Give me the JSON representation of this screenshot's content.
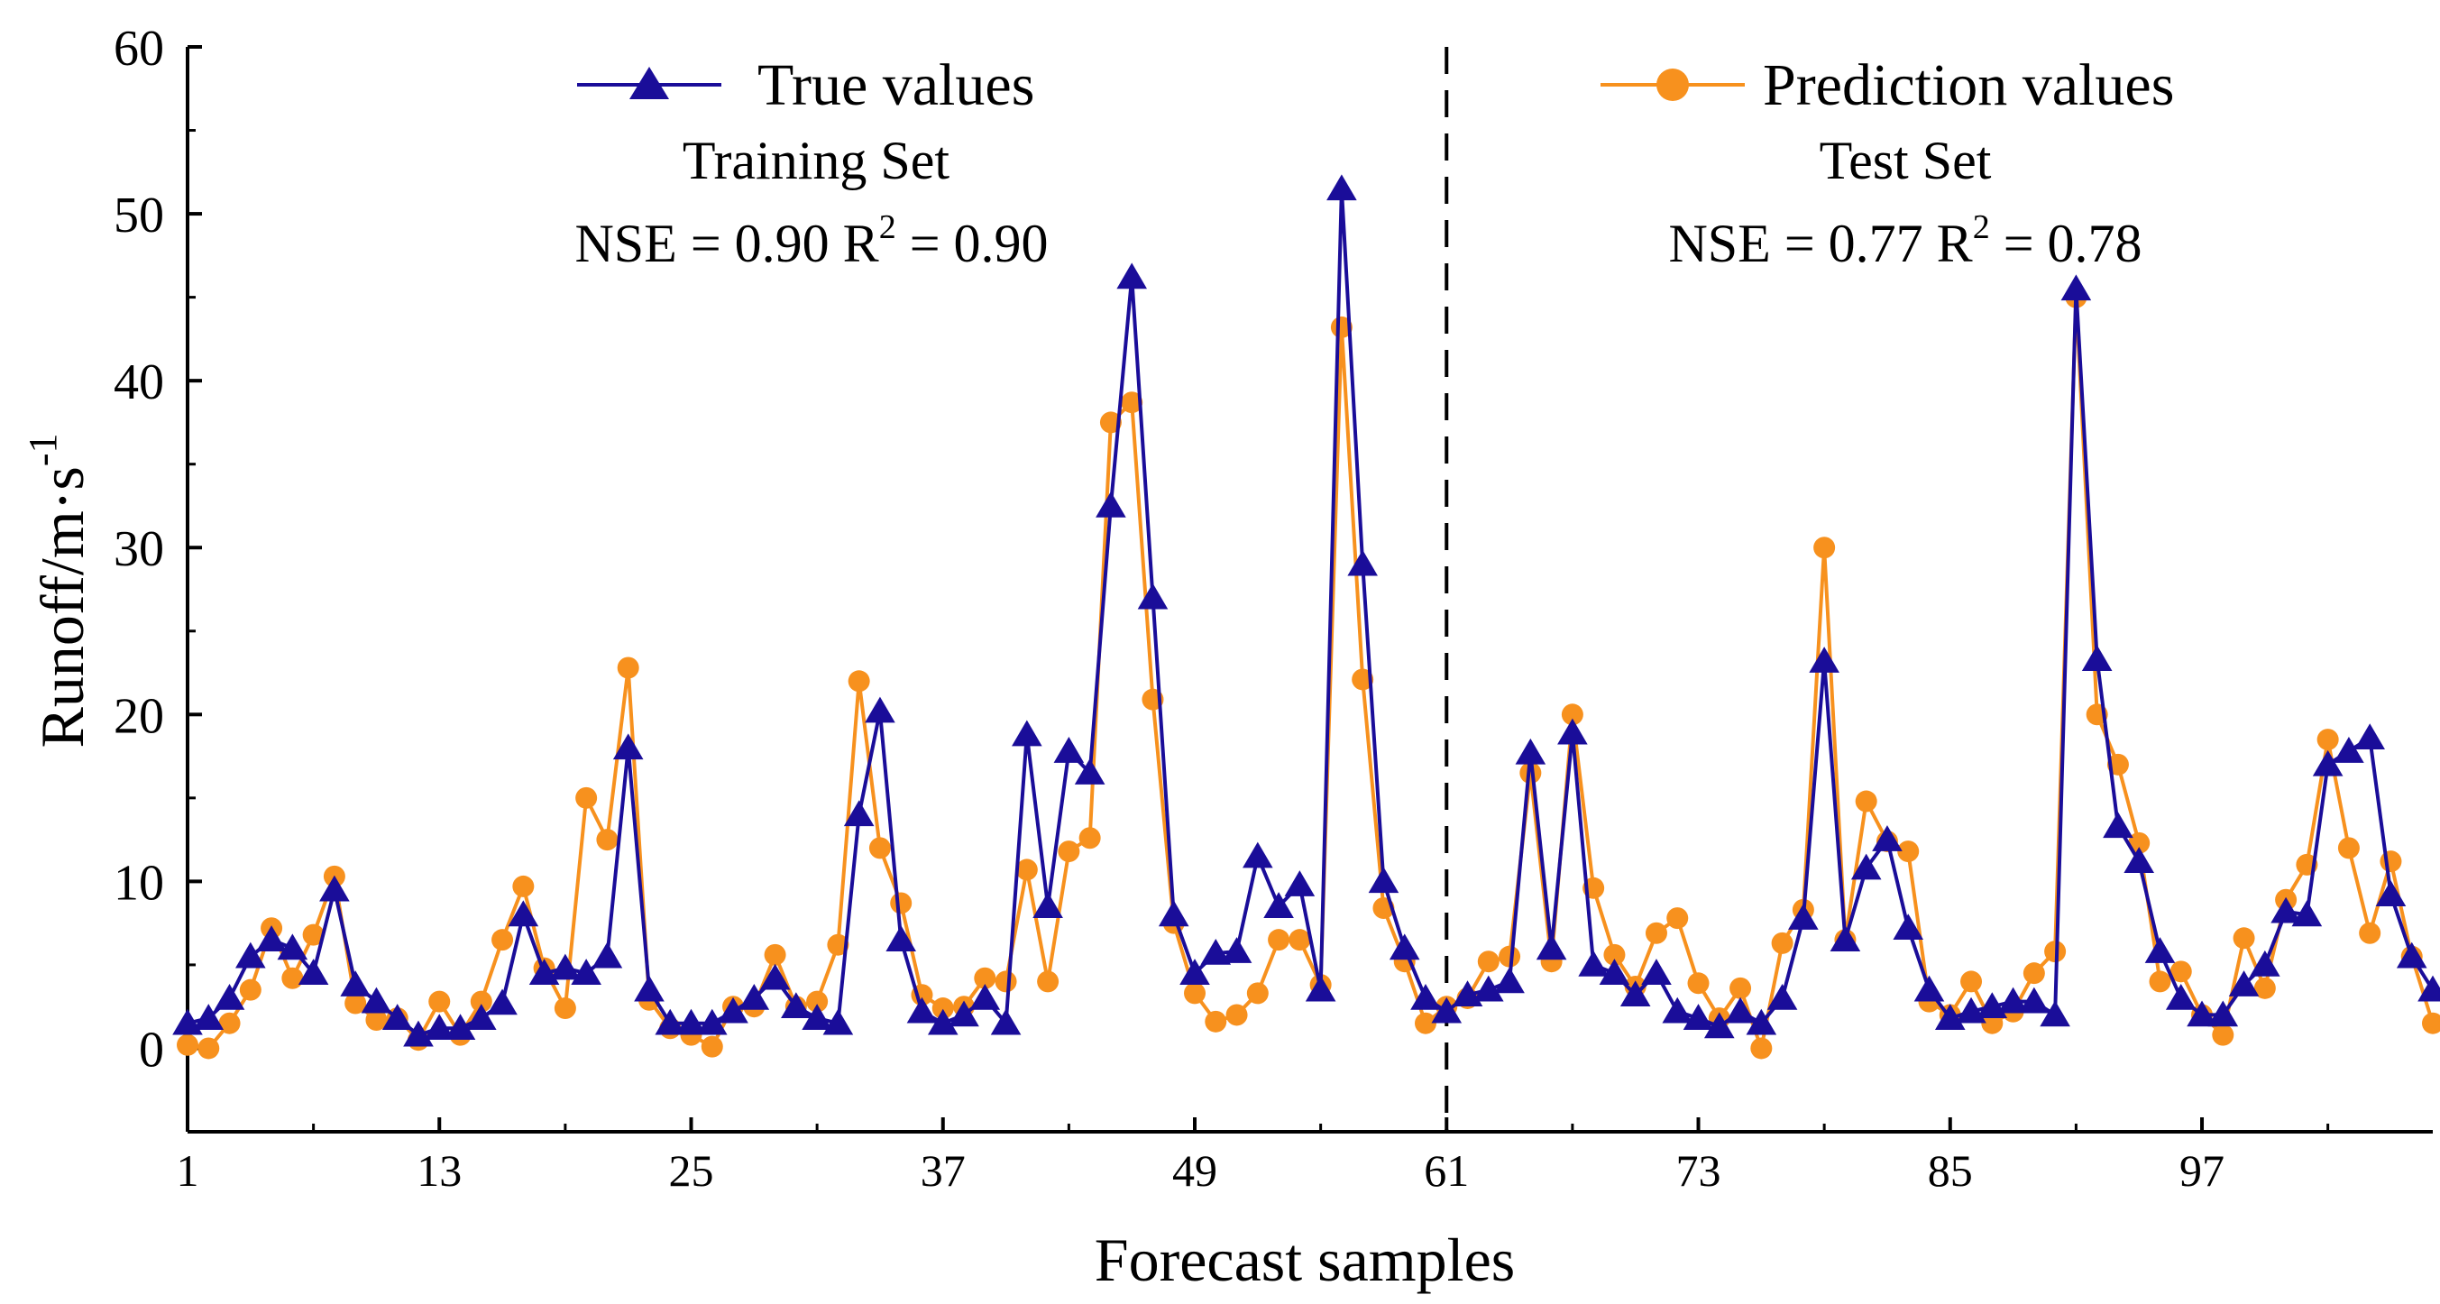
{
  "chart_data": {
    "type": "line",
    "xlabel": "Forecast samples",
    "ylabel": "Runoff/m·s",
    "ylabel_sup": "-1",
    "xlim": [
      1,
      108
    ],
    "ylim": [
      -5,
      60
    ],
    "yticks": [
      0,
      10,
      20,
      30,
      40,
      50,
      60
    ],
    "xticks": [
      1,
      13,
      25,
      37,
      49,
      61,
      73,
      85,
      97
    ],
    "divider_x": 61,
    "legend": {
      "position": "top",
      "entries": [
        "True values",
        "Prediction values"
      ]
    },
    "annotations": {
      "train_title": "Training Set",
      "train_metric_nse": "NSE = 0.90",
      "train_metric_r": "R",
      "train_metric_r_sup": "2",
      "train_metric_r_val": " = 0.90",
      "test_title": "Test Set",
      "test_metric_nse": "NSE = 0.77",
      "test_metric_r": "R",
      "test_metric_r_sup": "2",
      "test_metric_r_val": " = 0.78"
    },
    "colors": {
      "true": "#1a0d99",
      "pred": "#f7911e"
    },
    "x": [
      1,
      2,
      3,
      4,
      5,
      6,
      7,
      8,
      9,
      10,
      11,
      12,
      13,
      14,
      15,
      16,
      17,
      18,
      19,
      20,
      21,
      22,
      23,
      24,
      25,
      26,
      27,
      28,
      29,
      30,
      31,
      32,
      33,
      34,
      35,
      36,
      37,
      38,
      39,
      40,
      41,
      42,
      43,
      44,
      45,
      46,
      47,
      48,
      49,
      50,
      51,
      52,
      53,
      54,
      55,
      56,
      57,
      58,
      59,
      60,
      61,
      62,
      63,
      64,
      65,
      66,
      67,
      68,
      69,
      70,
      71,
      72,
      73,
      74,
      75,
      76,
      77,
      78,
      79,
      80,
      81,
      82,
      83,
      84,
      85,
      86,
      87,
      88,
      89,
      90,
      91,
      92,
      93,
      94,
      95,
      96,
      97,
      98,
      99,
      100,
      101,
      102,
      103,
      104,
      105,
      106,
      107,
      108
    ],
    "series": [
      {
        "name": "True values",
        "marker": "triangle",
        "values": [
          1.5,
          1.8,
          3.0,
          5.5,
          6.5,
          6.0,
          4.5,
          9.5,
          3.8,
          2.8,
          1.8,
          0.8,
          1.2,
          1.2,
          1.8,
          2.7,
          8.0,
          4.5,
          4.8,
          4.5,
          5.5,
          18.0,
          3.5,
          1.5,
          1.5,
          1.5,
          2.2,
          3.0,
          4.2,
          2.5,
          1.8,
          1.5,
          14.0,
          20.2,
          6.5,
          2.2,
          1.5,
          2.0,
          3.0,
          1.5,
          18.8,
          8.5,
          17.8,
          16.5,
          32.5,
          46.2,
          27.0,
          8.0,
          4.5,
          5.7,
          5.8,
          11.5,
          8.5,
          9.8,
          3.5,
          51.5,
          29.0,
          10.0,
          6.0,
          3.0,
          2.2,
          3.2,
          3.5,
          4.0,
          17.7,
          6.0,
          18.9,
          5.0,
          4.5,
          3.2,
          4.5,
          2.2,
          1.8,
          1.3,
          2.2,
          1.5,
          3.0,
          7.8,
          23.2,
          6.5,
          10.8,
          12.5,
          7.2,
          3.5,
          1.8,
          2.2,
          2.5,
          2.8,
          2.8,
          2.0,
          45.5,
          23.3,
          13.3,
          11.2,
          5.8,
          3.0,
          2.0,
          2.0,
          3.8,
          5.0,
          8.2,
          8.0,
          17.0,
          17.8,
          18.6,
          9.2,
          5.5,
          3.5
        ]
      },
      {
        "name": "Prediction values",
        "marker": "circle",
        "values": [
          0.2,
          0.0,
          1.5,
          3.5,
          7.2,
          4.2,
          6.8,
          10.3,
          2.7,
          1.7,
          1.8,
          0.5,
          2.8,
          0.8,
          2.8,
          6.5,
          9.7,
          4.8,
          2.4,
          15.0,
          12.5,
          22.8,
          2.9,
          1.2,
          0.8,
          0.1,
          2.5,
          2.5,
          5.6,
          2.5,
          2.8,
          6.2,
          22.0,
          12.0,
          8.7,
          3.2,
          2.4,
          2.5,
          4.2,
          4.0,
          10.7,
          4.0,
          11.8,
          12.6,
          37.5,
          38.7,
          20.9,
          7.5,
          3.3,
          1.6,
          2.0,
          3.3,
          6.5,
          6.5,
          3.8,
          43.2,
          22.1,
          8.4,
          5.2,
          1.5,
          2.5,
          3.0,
          5.2,
          5.5,
          16.5,
          5.2,
          20.0,
          9.6,
          5.6,
          3.7,
          6.9,
          7.8,
          3.9,
          1.8,
          3.6,
          0.0,
          6.3,
          8.3,
          30.0,
          6.5,
          14.8,
          12.4,
          11.8,
          2.8,
          2.0,
          4.0,
          1.5,
          2.2,
          4.5,
          5.8,
          45.0,
          20.0,
          17.0,
          12.3,
          4.0,
          4.6,
          2.0,
          0.8,
          6.6,
          3.6,
          8.9,
          11.0,
          18.5,
          12.0,
          6.9,
          11.2,
          5.5,
          1.5
        ]
      }
    ]
  }
}
